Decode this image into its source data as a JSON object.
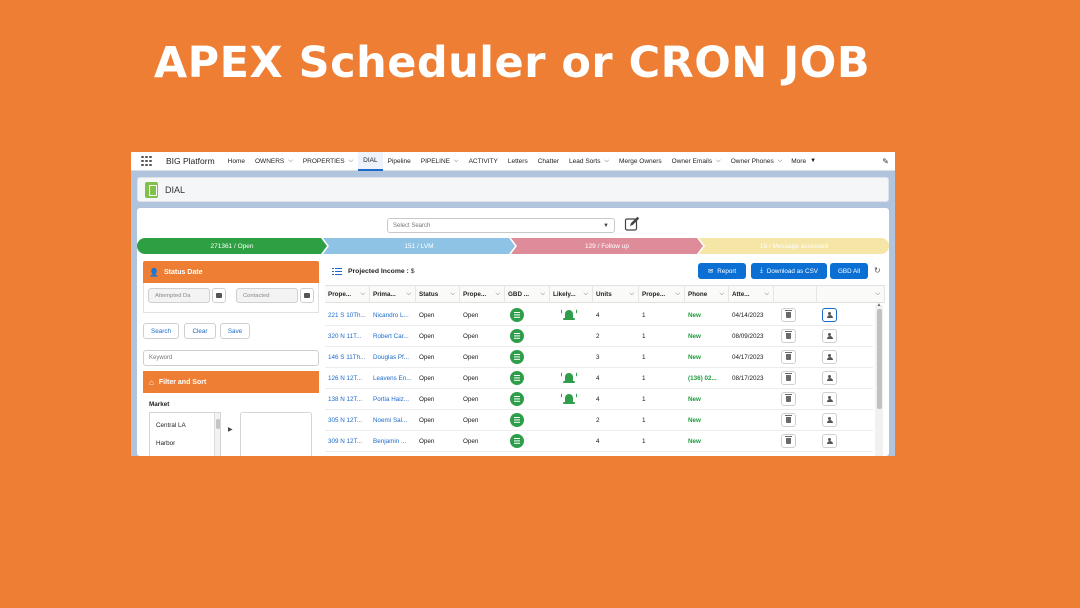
{
  "headline": "APEX Scheduler or CRON JOB",
  "nav": {
    "app_name": "BIG Platform",
    "items": [
      {
        "label": "Home",
        "dropdown": false,
        "active": false
      },
      {
        "label": "OWNERS",
        "dropdown": true,
        "active": false
      },
      {
        "label": "PROPERTIES",
        "dropdown": true,
        "active": false
      },
      {
        "label": "DIAL",
        "dropdown": false,
        "active": true
      },
      {
        "label": "Pipeline",
        "dropdown": false,
        "active": false
      },
      {
        "label": "PIPELINE",
        "dropdown": true,
        "active": false
      },
      {
        "label": "ACTIVITY",
        "dropdown": false,
        "active": false
      },
      {
        "label": "Letters",
        "dropdown": false,
        "active": false
      },
      {
        "label": "Chatter",
        "dropdown": false,
        "active": false
      },
      {
        "label": "Lead Sorts",
        "dropdown": true,
        "active": false
      },
      {
        "label": "Merge Owners",
        "dropdown": false,
        "active": false
      },
      {
        "label": "Owner Emails",
        "dropdown": true,
        "active": false
      },
      {
        "label": "Owner Phones",
        "dropdown": true,
        "active": false
      }
    ],
    "more_label": "More"
  },
  "page_title": "DIAL",
  "select_search_placeholder": "Select Search",
  "path_steps": [
    {
      "label": "271361 / Open",
      "color": "#2ea043"
    },
    {
      "label": "151 / LVM",
      "color": "#8fc3e6"
    },
    {
      "label": "129 / Follow up",
      "color": "#df8c9a"
    },
    {
      "label": "15 / Message assessed",
      "color": "#f5e5a6"
    }
  ],
  "status_date": {
    "title": "Status Date",
    "from_placeholder": "Attempted Da",
    "to_placeholder": "Contacted"
  },
  "buttons": {
    "search": "Search",
    "clear": "Clear",
    "save": "Save"
  },
  "keyword_placeholder": "Keyword",
  "filter_title": "Filter and Sort",
  "market": {
    "label": "Market",
    "items": [
      "Central LA",
      "Harbor"
    ]
  },
  "projected_income": {
    "label": "Projected Income :",
    "value": "$"
  },
  "toolbar": {
    "report": "Report",
    "download": "Download as CSV",
    "gbd_all": "GBD All"
  },
  "columns": [
    "Prope...",
    "Prima...",
    "Status",
    "Prope...",
    "GBD ...",
    "Likely...",
    "Units",
    "Prope...",
    "Phone",
    "Atte..."
  ],
  "rows": [
    {
      "property": "221 S 10Th...",
      "primary": "Nicandro L...",
      "status": "Open",
      "prop_status": "Open",
      "likely": true,
      "units": "4",
      "prop_count": "1",
      "phone": "New",
      "attempted": "04/14/2023",
      "selected": true
    },
    {
      "property": "320 N 11T...",
      "primary": "Robert Car...",
      "status": "Open",
      "prop_status": "Open",
      "likely": false,
      "units": "2",
      "prop_count": "1",
      "phone": "New",
      "attempted": "08/09/2023",
      "selected": false
    },
    {
      "property": "146 S 11Th...",
      "primary": "Douglas Pf...",
      "status": "Open",
      "prop_status": "Open",
      "likely": false,
      "units": "3",
      "prop_count": "1",
      "phone": "New",
      "attempted": "04/17/2023",
      "selected": false
    },
    {
      "property": "126 N 12T...",
      "primary": "Leavens En...",
      "status": "Open",
      "prop_status": "Open",
      "likely": true,
      "units": "4",
      "prop_count": "1",
      "phone": "(136) 02...",
      "attempted": "08/17/2023",
      "selected": false
    },
    {
      "property": "138 N 12T...",
      "primary": "Portia Haiz...",
      "status": "Open",
      "prop_status": "Open",
      "likely": true,
      "units": "4",
      "prop_count": "1",
      "phone": "New",
      "attempted": "",
      "selected": false
    },
    {
      "property": "305 N 12T...",
      "primary": "Noemi Sal...",
      "status": "Open",
      "prop_status": "Open",
      "likely": false,
      "units": "2",
      "prop_count": "1",
      "phone": "New",
      "attempted": "",
      "selected": false
    },
    {
      "property": "309 N 12T...",
      "primary": "Benjamin ...",
      "status": "Open",
      "prop_status": "Open",
      "likely": false,
      "units": "4",
      "prop_count": "1",
      "phone": "New",
      "attempted": "",
      "selected": false
    }
  ]
}
